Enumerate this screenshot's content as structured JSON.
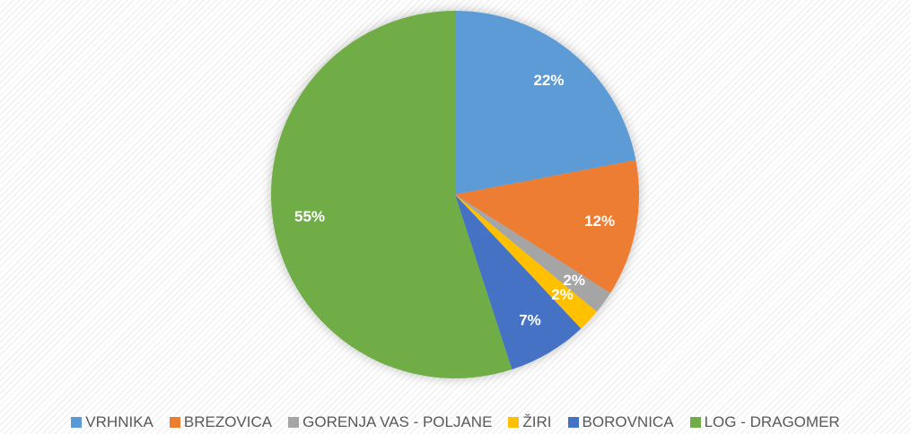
{
  "chart_data": {
    "type": "pie",
    "categories": [
      "VRHNIKA",
      "BREZOVICA",
      "GORENJA VAS - POLJANE",
      "ŽIRI",
      "BOROVNICA",
      "LOG - DRAGOMER"
    ],
    "values": [
      22,
      12,
      2,
      2,
      7,
      55
    ],
    "value_labels": [
      "22%",
      "12%",
      "2%",
      "2%",
      "7%",
      "55%"
    ],
    "colors": [
      "#5b9bd5",
      "#ed7d31",
      "#a5a5a5",
      "#ffc000",
      "#4472c4",
      "#70ad47"
    ],
    "legend": "bottom"
  }
}
